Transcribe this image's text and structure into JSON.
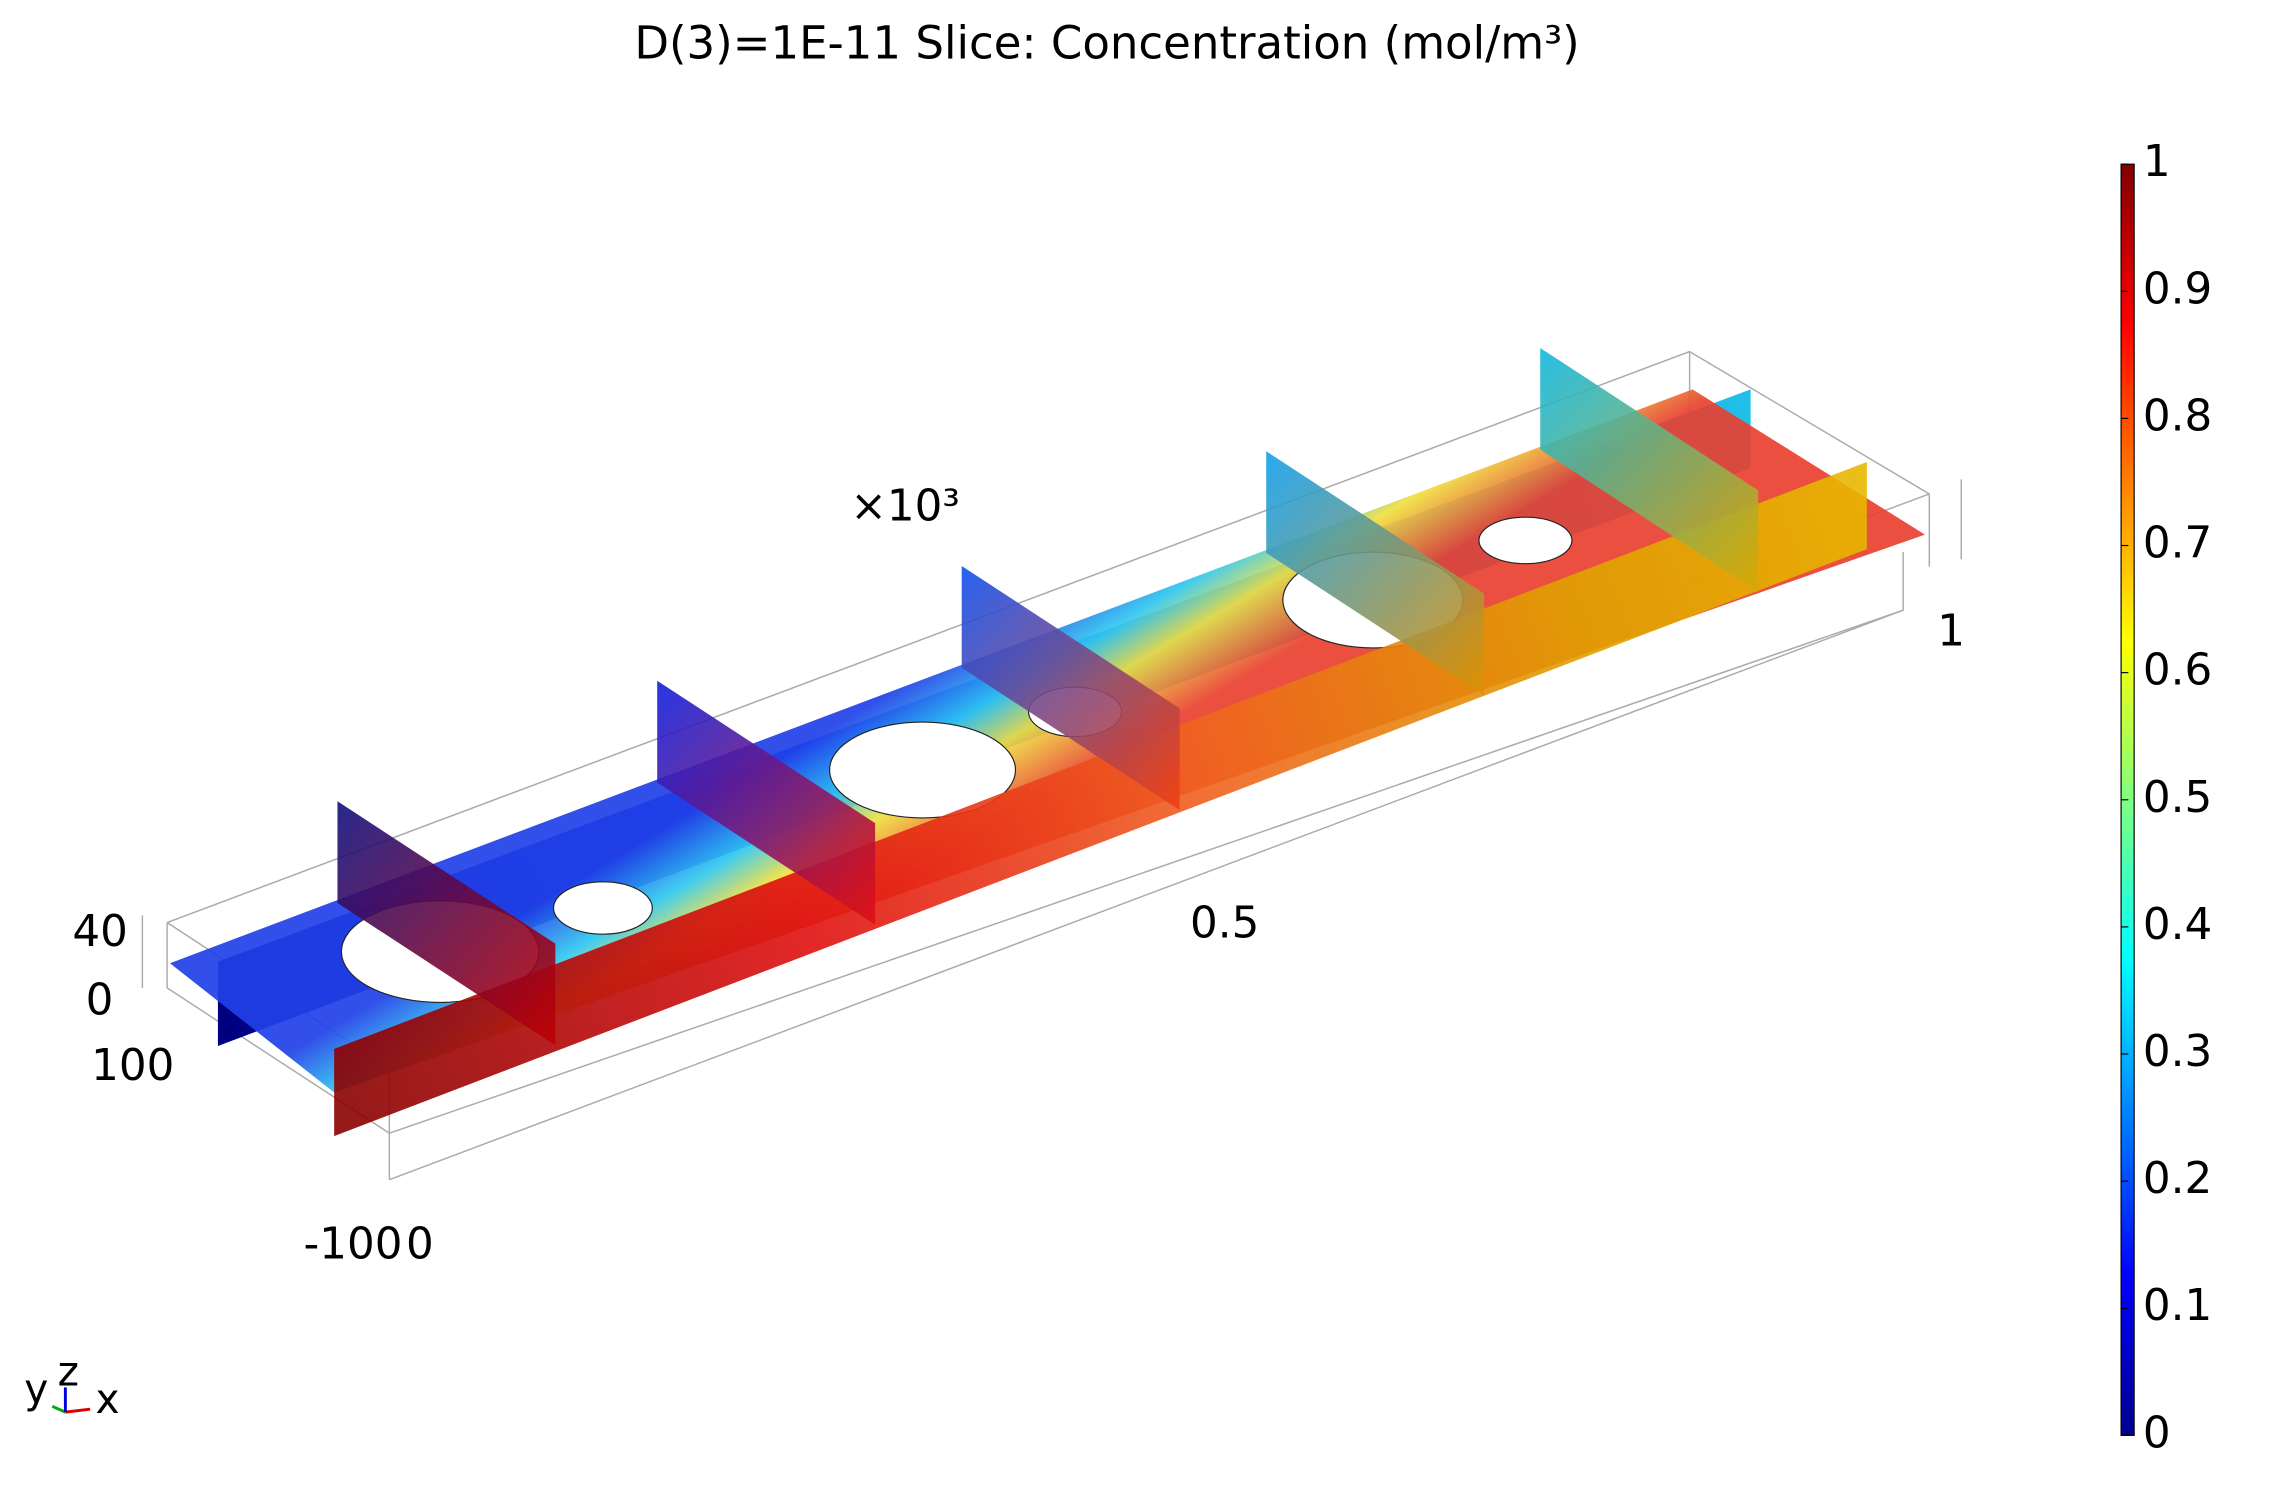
{
  "chart_data": {
    "type": "slice",
    "title": "D(3)=1E-11   Slice: Concentration (mol/m³)",
    "x_multiplier": "×10³",
    "xticks": [
      0,
      0.5,
      1
    ],
    "yticks": [
      -100,
      100
    ],
    "zticks": [
      0,
      40
    ],
    "triad": [
      "x",
      "y",
      "z"
    ],
    "colorbar": {
      "lim": [
        0,
        1
      ],
      "ticks": [
        0,
        0.1,
        0.2,
        0.3,
        0.4,
        0.5,
        0.6,
        0.7,
        0.8,
        0.9,
        1
      ]
    }
  }
}
